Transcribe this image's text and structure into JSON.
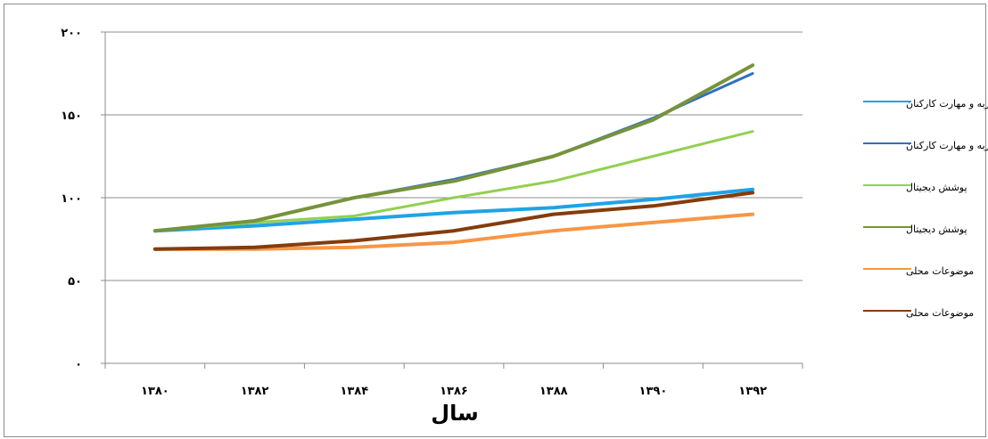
{
  "chart_data": {
    "type": "line",
    "xlabel": "سال",
    "ylabel": "",
    "ylim": [
      0,
      200
    ],
    "y_ticks": [
      "۰",
      "۵۰",
      "۱۰۰",
      "۱۵۰",
      "۲۰۰"
    ],
    "y_tick_values": [
      0,
      50,
      100,
      150,
      200
    ],
    "categories": [
      "۱۳۸۰",
      "۱۳۸۲",
      "۱۳۸۴",
      "۱۳۸۶",
      "۱۳۸۸",
      "۱۳۹۰",
      "۱۳۹۲"
    ],
    "grid": "horizontal",
    "legend_position": "right",
    "series": [
      {
        "name": "تجربه و مهارت کارکنان",
        "color": "#1fa3e8",
        "width": 4,
        "values": [
          80,
          83,
          87,
          91,
          94,
          99,
          105
        ]
      },
      {
        "name": "تجربه و مهارت کارکنان",
        "color": "#2f6fc0",
        "width": 3,
        "values": [
          80,
          86,
          100,
          111,
          125,
          148,
          175
        ]
      },
      {
        "name": "پوشش دیجیتال",
        "color": "#92d050",
        "width": 3,
        "values": [
          80,
          85,
          89,
          100,
          110,
          125,
          140
        ]
      },
      {
        "name": "پوشش دیجیتال",
        "color": "#76933c",
        "width": 4,
        "values": [
          80,
          86,
          100,
          110,
          125,
          147,
          180
        ]
      },
      {
        "name": "موضوعات محلی",
        "color": "#f79646",
        "width": 4,
        "values": [
          69,
          69,
          70,
          73,
          80,
          85,
          90
        ]
      },
      {
        "name": "موضوعات محلی",
        "color": "#843c0c",
        "width": 4,
        "values": [
          69,
          70,
          74,
          80,
          90,
          95,
          103
        ]
      }
    ]
  }
}
